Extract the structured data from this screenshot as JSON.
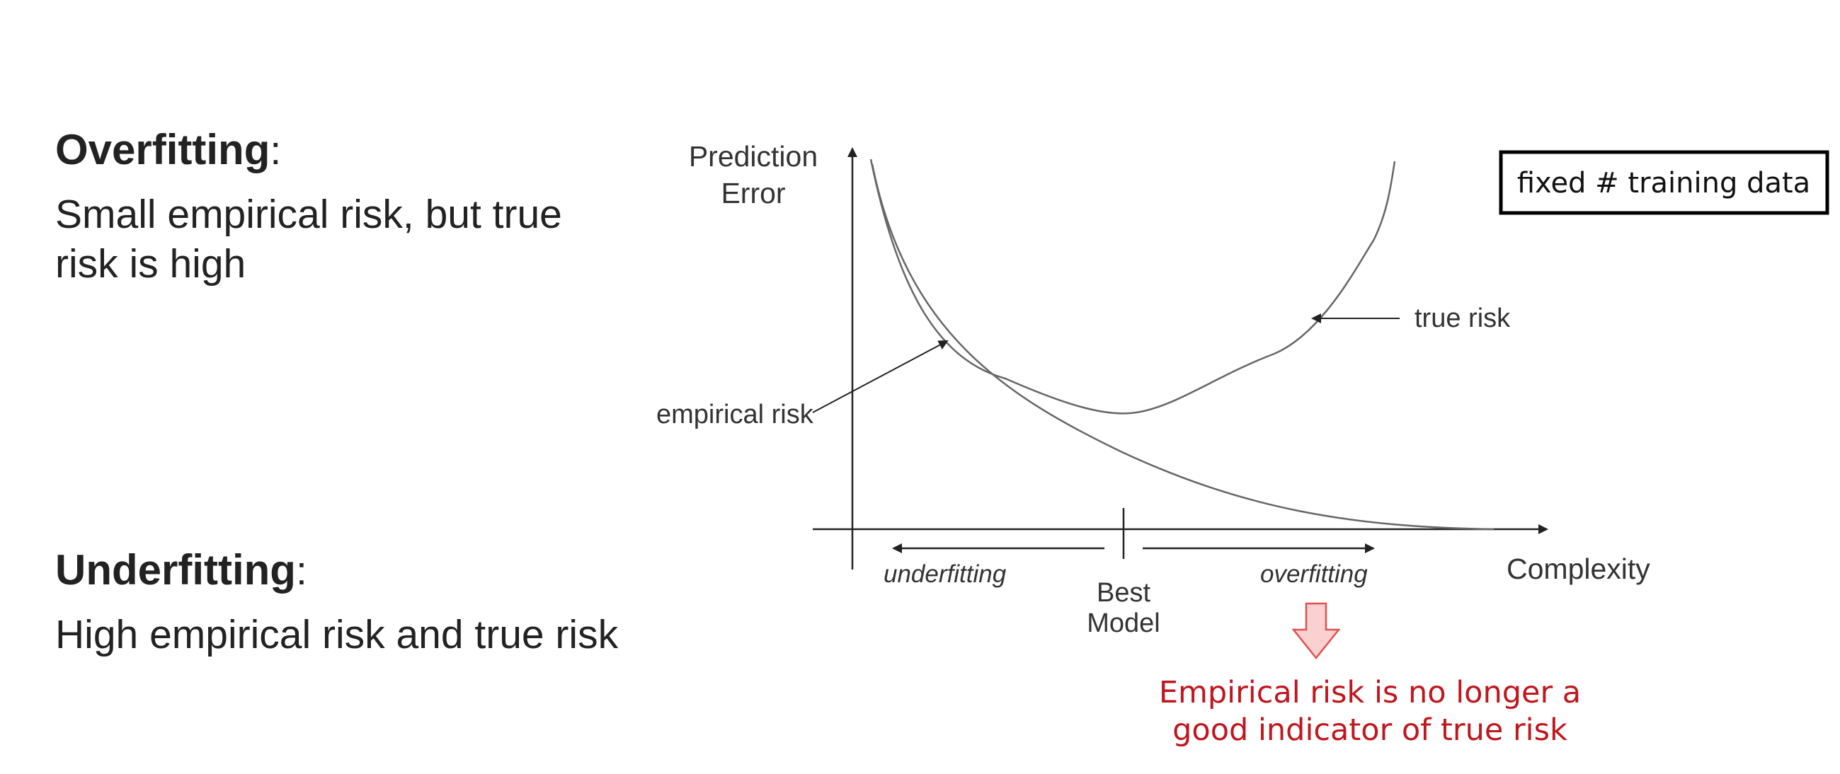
{
  "overfitting": {
    "heading": "Overfitting",
    "colon": ":",
    "line1": "Small empirical risk, but true",
    "line2": "risk is high"
  },
  "underfitting": {
    "heading": "Underfitting",
    "colon": ":",
    "line1": "High empirical risk and true risk"
  },
  "diagram": {
    "y_axis_label_line1": "Prediction",
    "y_axis_label_line2": "Error",
    "x_axis_label": "Complexity",
    "true_risk_label": "true risk",
    "empirical_risk_label": "empirical risk",
    "underfitting_label": "underfitting",
    "overfitting_label": "overfitting",
    "best_model_line1": "Best",
    "best_model_line2": "Model",
    "box_label": "fixed # training data",
    "note_line1": "Empirical risk is no longer a",
    "note_line2": "good indicator of true risk",
    "colors": {
      "curve": "#666666",
      "axis": "#222222",
      "note_text": "#c0161e",
      "note_arrow_fill": "#fbd0d0",
      "note_arrow_stroke": "#e05050"
    }
  }
}
